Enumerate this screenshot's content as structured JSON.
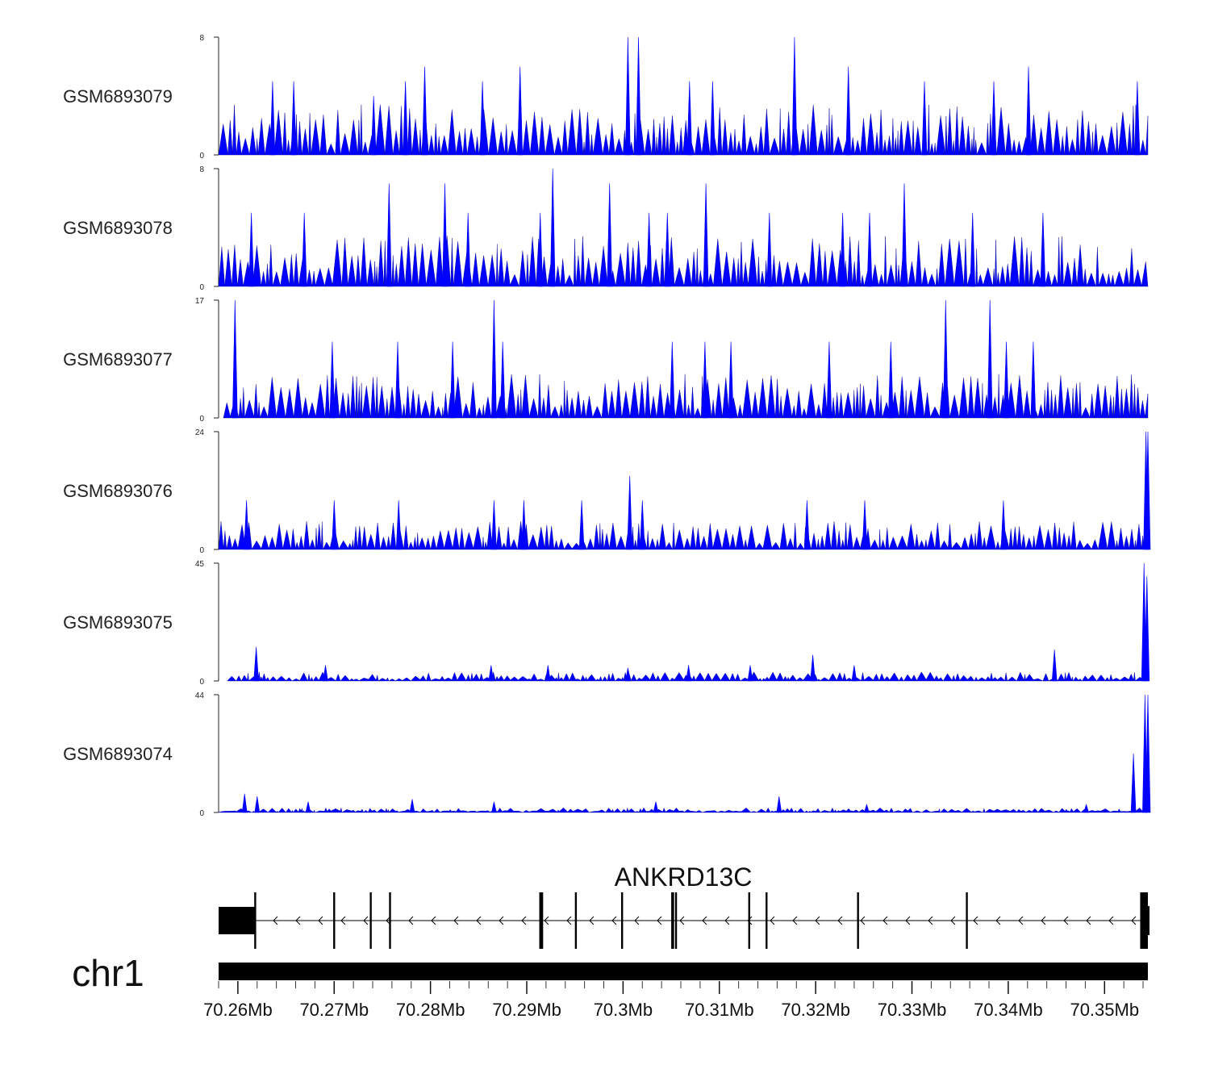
{
  "chart_data": {
    "type": "area",
    "title": "",
    "xlabel": "",
    "ylabel": "",
    "genome_range": [
      70.258,
      70.3545
    ],
    "chromosome": "chr1",
    "gene": {
      "name": "ANKRD13C",
      "strand": "-",
      "start": 70.258,
      "end": 70.3545,
      "exons": [
        {
          "start": 70.258,
          "end": 70.2618
        },
        {
          "start": 70.2617,
          "end": 70.2619
        },
        {
          "start": 70.2699,
          "end": 70.2701
        },
        {
          "start": 70.2737,
          "end": 70.2739
        },
        {
          "start": 70.2757,
          "end": 70.2759
        },
        {
          "start": 70.2913,
          "end": 70.2917
        },
        {
          "start": 70.295,
          "end": 70.2952
        },
        {
          "start": 70.2998,
          "end": 70.3
        },
        {
          "start": 70.305,
          "end": 70.3053
        },
        {
          "start": 70.3054,
          "end": 70.3056
        },
        {
          "start": 70.313,
          "end": 70.3132
        },
        {
          "start": 70.3148,
          "end": 70.315
        },
        {
          "start": 70.3243,
          "end": 70.3245
        },
        {
          "start": 70.3356,
          "end": 70.3358
        },
        {
          "start": 70.3537,
          "end": 70.3545
        }
      ]
    },
    "x_ticks": [
      70.26,
      70.27,
      70.28,
      70.29,
      70.3,
      70.31,
      70.32,
      70.33,
      70.34,
      70.35
    ],
    "x_tick_labels": [
      "70.26Mb",
      "70.27Mb",
      "70.28Mb",
      "70.29Mb",
      "70.3Mb",
      "70.31Mb",
      "70.32Mb",
      "70.33Mb",
      "70.34Mb",
      "70.35Mb"
    ],
    "tracks": [
      {
        "name": "GSM6893079",
        "ylim": [
          0,
          8
        ],
        "ymax_label": "8",
        "ymin_label": "0",
        "coverage_start": 70.258,
        "peaks": [
          [
            70.2636,
            5
          ],
          [
            70.2658,
            5
          ],
          [
            70.2741,
            4
          ],
          [
            70.2774,
            5
          ],
          [
            70.2794,
            6
          ],
          [
            70.2854,
            5
          ],
          [
            70.2893,
            6
          ],
          [
            70.3005,
            8
          ],
          [
            70.3016,
            8
          ],
          [
            70.3069,
            5
          ],
          [
            70.3093,
            5
          ],
          [
            70.3178,
            8
          ],
          [
            70.3234,
            6
          ],
          [
            70.3313,
            5
          ],
          [
            70.3385,
            5
          ],
          [
            70.3421,
            6
          ],
          [
            70.3534,
            5
          ]
        ],
        "base": 3,
        "color": "#0000ff"
      },
      {
        "name": "GSM6893078",
        "ylim": [
          0,
          8
        ],
        "ymax_label": "8",
        "ymin_label": "0",
        "coverage_start": 70.258,
        "peaks": [
          [
            70.2614,
            5
          ],
          [
            70.2669,
            5
          ],
          [
            70.2757,
            7
          ],
          [
            70.2815,
            7
          ],
          [
            70.2839,
            5
          ],
          [
            70.2914,
            5
          ],
          [
            70.2927,
            8
          ],
          [
            70.2986,
            7
          ],
          [
            70.3027,
            5
          ],
          [
            70.3046,
            5
          ],
          [
            70.3086,
            7
          ],
          [
            70.3152,
            5
          ],
          [
            70.3228,
            5
          ],
          [
            70.3256,
            5
          ],
          [
            70.3292,
            7
          ],
          [
            70.3363,
            5
          ],
          [
            70.3436,
            5
          ]
        ],
        "base": 3,
        "color": "#0000ff"
      },
      {
        "name": "GSM6893077",
        "ylim": [
          0,
          17
        ],
        "ymax_label": "17",
        "ymin_label": "0",
        "coverage_start": 70.2585,
        "peaks": [
          [
            70.2597,
            17
          ],
          [
            70.2698,
            11
          ],
          [
            70.2766,
            11
          ],
          [
            70.2823,
            11
          ],
          [
            70.2866,
            17
          ],
          [
            70.2875,
            11
          ],
          [
            70.3051,
            11
          ],
          [
            70.3085,
            11
          ],
          [
            70.3112,
            11
          ],
          [
            70.3214,
            11
          ],
          [
            70.3278,
            11
          ],
          [
            70.3335,
            17
          ],
          [
            70.3381,
            17
          ],
          [
            70.3398,
            11
          ],
          [
            70.3426,
            11
          ]
        ],
        "base": 5.5,
        "color": "#0000ff"
      },
      {
        "name": "GSM6893076",
        "ylim": [
          0,
          24
        ],
        "ymax_label": "24",
        "ymin_label": "0",
        "coverage_start": 70.258,
        "peaks": [
          [
            70.2609,
            10
          ],
          [
            70.27,
            10
          ],
          [
            70.2767,
            10
          ],
          [
            70.2866,
            10
          ],
          [
            70.2897,
            10
          ],
          [
            70.2957,
            10
          ],
          [
            70.3007,
            15
          ],
          [
            70.302,
            10
          ],
          [
            70.3191,
            10
          ],
          [
            70.3251,
            10
          ],
          [
            70.3395,
            10
          ],
          [
            70.3543,
            24
          ],
          [
            70.3545,
            24
          ]
        ],
        "base": 5,
        "color": "#0000ff"
      },
      {
        "name": "GSM6893075",
        "ylim": [
          0,
          45
        ],
        "ymax_label": "45",
        "ymin_label": "0",
        "coverage_start": 70.2589,
        "peaks": [
          [
            70.2619,
            13
          ],
          [
            70.2691,
            6
          ],
          [
            70.2863,
            6
          ],
          [
            70.2922,
            6
          ],
          [
            70.3005,
            5
          ],
          [
            70.3068,
            6
          ],
          [
            70.3132,
            6
          ],
          [
            70.3197,
            10
          ],
          [
            70.324,
            6
          ],
          [
            70.3448,
            12
          ],
          [
            70.3541,
            45
          ],
          [
            70.3544,
            40
          ]
        ],
        "base": 3,
        "color": "#0000ff"
      },
      {
        "name": "GSM6893074",
        "ylim": [
          0,
          44
        ],
        "ymax_label": "44",
        "ymin_label": "0",
        "coverage_start": 70.258,
        "peaks": [
          [
            70.2607,
            7
          ],
          [
            70.262,
            6
          ],
          [
            70.2673,
            4
          ],
          [
            70.2781,
            5
          ],
          [
            70.2866,
            4
          ],
          [
            70.3034,
            4
          ],
          [
            70.3162,
            6
          ],
          [
            70.3253,
            3
          ],
          [
            70.3481,
            3
          ],
          [
            70.353,
            22
          ],
          [
            70.3542,
            44
          ],
          [
            70.3545,
            44
          ]
        ],
        "base": 1.5,
        "color": "#0000ff"
      }
    ]
  }
}
